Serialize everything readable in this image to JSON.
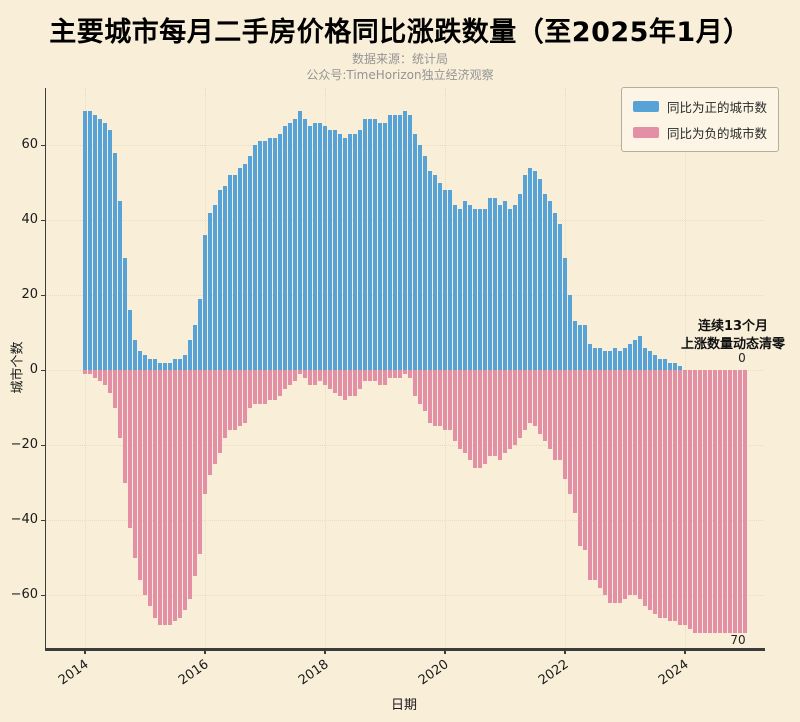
{
  "page": {
    "subtitle1": "数据来源：统计局",
    "subtitle2": "公众号:TimeHorizon独立经济观察"
  },
  "annotations": {
    "note_line1": "连续13个月",
    "note_line2": "上涨数量动态清零",
    "zero_label": "0",
    "seventy_label": "70"
  },
  "chart_data": {
    "type": "bar",
    "title": "主要城市每月二手房价格同比涨跌数量（至2025年1月）",
    "xlabel": "日期",
    "ylabel": "城市个数",
    "ylim": [
      -74,
      75
    ],
    "grid": true,
    "legend_position": "upper right",
    "x_start": "2014-01",
    "x_end": "2025-01",
    "months_total": 133,
    "xticks": {
      "labels": [
        "2014",
        "2016",
        "2018",
        "2020",
        "2022",
        "2024"
      ],
      "month_indices": [
        0,
        24,
        48,
        72,
        96,
        120
      ]
    },
    "yticks": [
      60,
      40,
      20,
      0,
      -20,
      -40,
      -60
    ],
    "colors": {
      "positive": "#57a2d7",
      "negative": "#e38fa5",
      "background": "#f9efd9",
      "spine": "#3c3c3c"
    },
    "series": [
      {
        "name": "同比为正的城市数",
        "values": [
          69,
          69,
          68,
          67,
          66,
          64,
          58,
          45,
          30,
          16,
          8,
          5,
          4,
          3,
          3,
          2,
          2,
          2,
          3,
          3,
          4,
          8,
          12,
          19,
          36,
          42,
          44,
          48,
          49,
          52,
          52,
          54,
          55,
          57,
          60,
          61,
          61,
          62,
          62,
          63,
          65,
          66,
          67,
          69,
          67,
          65,
          66,
          66,
          65,
          64,
          64,
          63,
          62,
          63,
          63,
          64,
          67,
          67,
          67,
          66,
          66,
          68,
          68,
          68,
          69,
          68,
          63,
          60,
          57,
          53,
          52,
          50,
          48,
          48,
          44,
          43,
          45,
          44,
          43,
          43,
          43,
          46,
          46,
          44,
          45,
          43,
          44,
          47,
          52,
          54,
          53,
          51,
          47,
          45,
          42,
          39,
          30,
          20,
          13,
          12,
          12,
          7,
          6,
          6,
          5,
          5,
          6,
          5,
          6,
          7,
          8,
          9,
          6,
          5,
          4,
          3,
          3,
          2,
          2,
          1,
          0,
          0,
          0,
          0,
          0,
          0,
          0,
          0,
          0,
          0,
          0,
          0,
          0
        ]
      },
      {
        "name": "同比为负的城市数",
        "values": [
          -1,
          -1,
          -2,
          -3,
          -4,
          -6,
          -10,
          -18,
          -30,
          -42,
          -50,
          -56,
          -60,
          -63,
          -66,
          -68,
          -68,
          -68,
          -67,
          -66,
          -64,
          -61,
          -55,
          -49,
          -33,
          -28,
          -25,
          -22,
          -18,
          -16,
          -16,
          -15,
          -14,
          -10,
          -9,
          -9,
          -9,
          -8,
          -8,
          -7,
          -5,
          -4,
          -3,
          -1,
          -2,
          -4,
          -4,
          -3,
          -4,
          -5,
          -6,
          -7,
          -8,
          -7,
          -7,
          -5,
          -3,
          -3,
          -3,
          -4,
          -4,
          -2,
          -2,
          -2,
          -1,
          -2,
          -7,
          -9,
          -11,
          -14,
          -15,
          -15,
          -16,
          -16,
          -19,
          -21,
          -22,
          -24,
          -26,
          -26,
          -25,
          -23,
          -23,
          -24,
          -22,
          -21,
          -20,
          -18,
          -16,
          -14,
          -15,
          -17,
          -19,
          -21,
          -24,
          -24,
          -29,
          -33,
          -38,
          -47,
          -48,
          -56,
          -56,
          -58,
          -60,
          -62,
          -62,
          -62,
          -61,
          -60,
          -60,
          -61,
          -63,
          -64,
          -65,
          -66,
          -66,
          -67,
          -67,
          -68,
          -68,
          -69,
          -70,
          -70,
          -70,
          -70,
          -70,
          -70,
          -70,
          -70,
          -70,
          -70,
          -70
        ]
      }
    ]
  }
}
